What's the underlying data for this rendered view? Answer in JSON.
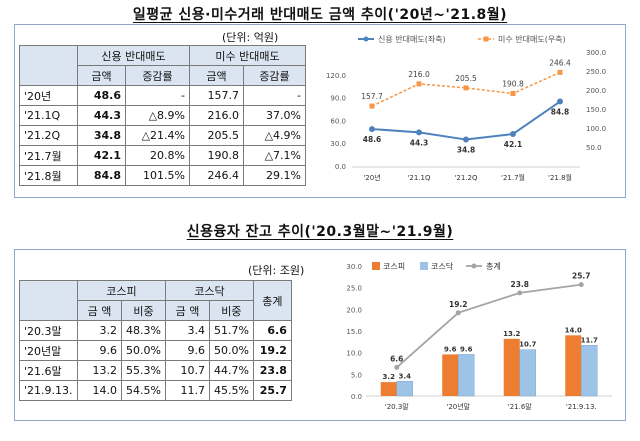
{
  "top": {
    "title": "일평균 신용·미수거래 반대매도 금액 추이('20년~'21.8월)",
    "unit": "(단위: 억원)",
    "table": {
      "group_headers": [
        "신용 반대매도",
        "미수 반대매도"
      ],
      "sub_headers": [
        "금액",
        "증감률",
        "금액",
        "증감률"
      ],
      "rows": [
        {
          "label": "'20년",
          "cells": [
            "48.6",
            "-",
            "157.7",
            "-"
          ]
        },
        {
          "label": "'21.1Q",
          "cells": [
            "44.3",
            "△8.9%",
            "216.0",
            "37.0%"
          ]
        },
        {
          "label": "'21.2Q",
          "cells": [
            "34.8",
            "△21.4%",
            "205.5",
            "△4.9%"
          ]
        },
        {
          "label": "'21.7월",
          "cells": [
            "42.1",
            "20.8%",
            "190.8",
            "△7.1%"
          ]
        },
        {
          "label": "'21.8월",
          "cells": [
            "84.8",
            "101.5%",
            "246.4",
            "29.1%"
          ]
        }
      ]
    }
  },
  "bottom": {
    "title": "신용융자 잔고 추이('20.3월말~'21.9월)",
    "unit": "(단위: 조원)",
    "table": {
      "group_headers": [
        "코스피",
        "코스닥",
        "총계"
      ],
      "sub_headers": [
        "금 액",
        "비중",
        "금 액",
        "비중"
      ],
      "rows": [
        {
          "label": "'20.3말",
          "cells": [
            "3.2",
            "48.3%",
            "3.4",
            "51.7%",
            "6.6"
          ]
        },
        {
          "label": "'20년말",
          "cells": [
            "9.6",
            "50.0%",
            "9.6",
            "50.0%",
            "19.2"
          ]
        },
        {
          "label": "'21.6말",
          "cells": [
            "13.2",
            "55.3%",
            "10.7",
            "44.7%",
            "23.8"
          ]
        },
        {
          "label": "'21.9.13.",
          "cells": [
            "14.0",
            "54.5%",
            "11.7",
            "45.5%",
            "25.7"
          ]
        }
      ]
    }
  },
  "chart_data": [
    {
      "type": "line",
      "categories": [
        "'20년",
        "'21.1Q",
        "'21.2Q",
        "'21.7월",
        "'21.8월"
      ],
      "series": [
        {
          "name": "신용 반대매도(좌축)",
          "values": [
            48.6,
            44.3,
            34.8,
            42.1,
            84.8
          ],
          "axis": "left",
          "color": "#4f81bd",
          "style": "solid"
        },
        {
          "name": "미수 반대매도(우축)",
          "values": [
            157.7,
            216.0,
            205.5,
            190.8,
            246.4
          ],
          "axis": "right",
          "color": "#f79646",
          "style": "dashed"
        }
      ],
      "y_left": {
        "ticks": [
          "0.0",
          "30.0",
          "60.0",
          "90.0",
          "120.0"
        ],
        "ylim": [
          0,
          150
        ]
      },
      "y_right": {
        "ticks": [
          "50.0",
          "100.0",
          "150.0",
          "200.0",
          "250.0",
          "300.0"
        ],
        "ylim": [
          0,
          300
        ]
      },
      "legend": "top",
      "grid": false
    },
    {
      "type": "bar",
      "categories": [
        "'20.3말",
        "'20년말",
        "'21.6말",
        "'21.9.13."
      ],
      "series": [
        {
          "name": "코스피",
          "kind": "bar",
          "values": [
            3.2,
            9.6,
            13.2,
            14.0
          ],
          "color": "#ed7d31"
        },
        {
          "name": "코스닥",
          "kind": "bar",
          "values": [
            3.4,
            9.6,
            10.7,
            11.7
          ],
          "color": "#9dc3e6"
        },
        {
          "name": "총계",
          "kind": "line",
          "values": [
            6.6,
            19.2,
            23.8,
            25.7
          ],
          "color": "#a5a5a5"
        }
      ],
      "y_ticks": [
        "0.0",
        "5.0",
        "10.0",
        "15.0",
        "20.0",
        "25.0",
        "30.0"
      ],
      "ylim": [
        0,
        30
      ],
      "legend": "top-left",
      "grid": false
    }
  ]
}
